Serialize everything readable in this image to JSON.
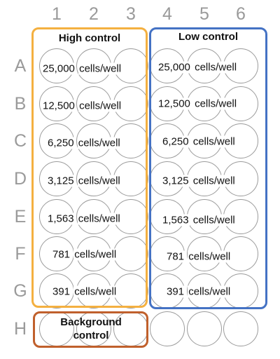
{
  "plate": {
    "columns": [
      "1",
      "2",
      "3",
      "4",
      "5",
      "6"
    ],
    "rows": [
      "A",
      "B",
      "C",
      "D",
      "E",
      "F",
      "G",
      "H"
    ]
  },
  "groups": {
    "high_control": {
      "title": "High control",
      "color": "#F4B040"
    },
    "low_control": {
      "title": "Low control",
      "color": "#4472C4"
    },
    "background_control": {
      "title_line1": "Background",
      "title_line2": "control",
      "color": "#C0602C"
    }
  },
  "wells": {
    "high": [
      {
        "count": "25,000",
        "unit": "cells/well"
      },
      {
        "count": "12,500",
        "unit": "cells/well"
      },
      {
        "count": "6,250",
        "unit": "cells/well"
      },
      {
        "count": "3,125",
        "unit": "cells/well"
      },
      {
        "count": "1,563",
        "unit": "cells/well"
      },
      {
        "count": "781",
        "unit": "cells/well"
      },
      {
        "count": "391",
        "unit": "cells/well"
      }
    ],
    "low": [
      {
        "count": "25,000",
        "unit": "cells/well"
      },
      {
        "count": "12,500",
        "unit": "cells/well"
      },
      {
        "count": "6,250",
        "unit": "cells/well"
      },
      {
        "count": "3,125",
        "unit": "cells/well"
      },
      {
        "count": "1,563",
        "unit": "cells/well"
      },
      {
        "count": "781",
        "unit": "cells/well"
      },
      {
        "count": "391",
        "unit": "cells/well"
      }
    ]
  }
}
